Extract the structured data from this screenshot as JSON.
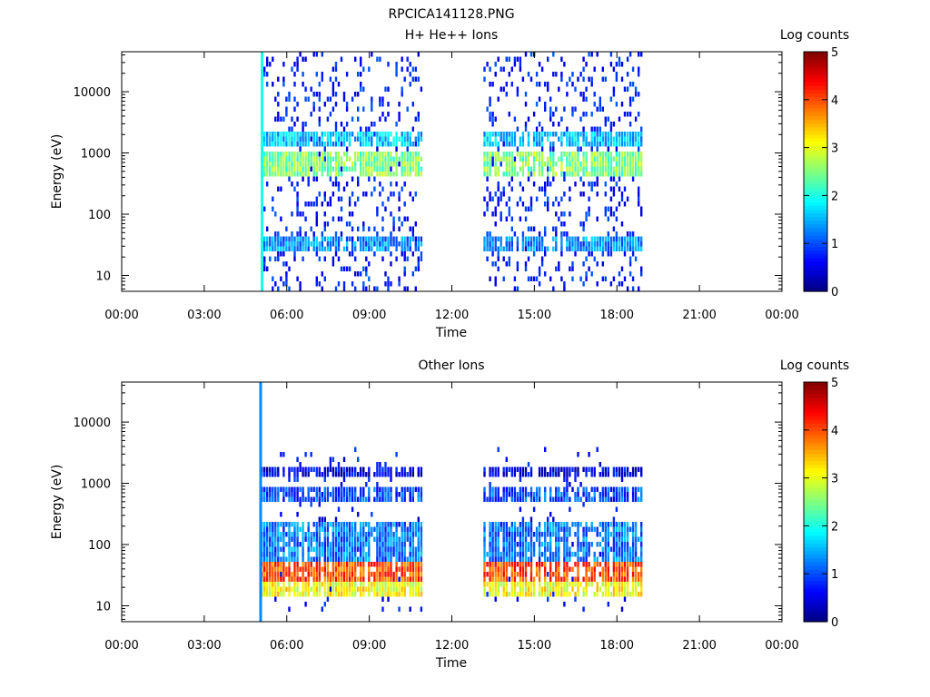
{
  "figure_title": "RPCICA141128.PNG",
  "colors": {
    "colormap": [
      "#00007f",
      "#0000ff",
      "#007fff",
      "#00ffff",
      "#7fff7f",
      "#ffff00",
      "#ff7f00",
      "#ff0000",
      "#7f0000"
    ]
  },
  "chart_data": [
    {
      "type": "heatmap",
      "title": "H+ He++ Ions",
      "xlabel": "Time",
      "ylabel": "Energy (eV)",
      "yscale": "log",
      "ylim": [
        5.5,
        45000
      ],
      "xlim_hours": [
        0,
        24
      ],
      "x_ticks": [
        "00:00",
        "03:00",
        "06:00",
        "09:00",
        "12:00",
        "15:00",
        "18:00",
        "21:00",
        "00:00"
      ],
      "y_ticks": [
        {
          "value": 10,
          "label": "10"
        },
        {
          "value": 100,
          "label": "100"
        },
        {
          "value": 1000,
          "label": "1000"
        },
        {
          "value": 10000,
          "label": "10000"
        }
      ],
      "colorbar": {
        "label": "Log counts",
        "range": [
          0,
          5
        ],
        "ticks": [
          "0",
          "1",
          "2",
          "3",
          "4",
          "5"
        ]
      },
      "data_intervals_hours": [
        [
          5.05,
          10.85
        ],
        [
          13.15,
          18.9
        ]
      ],
      "spike_hour": 5.05,
      "spike_level": 2,
      "bands": [
        {
          "e_lo": 1200,
          "e_hi": 2300,
          "level": 1.6
        },
        {
          "e_lo": 420,
          "e_hi": 1000,
          "level": 2.5
        },
        {
          "e_lo": 24,
          "e_hi": 45,
          "level": 1.3
        }
      ],
      "scatter": [
        {
          "e_lo": 6,
          "e_hi": 42000,
          "level": 0.4,
          "density": 0.18
        }
      ]
    },
    {
      "type": "heatmap",
      "title": "Other Ions",
      "xlabel": "Time",
      "ylabel": "Energy (eV)",
      "yscale": "log",
      "ylim": [
        5.5,
        45000
      ],
      "xlim_hours": [
        0,
        24
      ],
      "x_ticks": [
        "00:00",
        "03:00",
        "06:00",
        "09:00",
        "12:00",
        "15:00",
        "18:00",
        "21:00",
        "00:00"
      ],
      "y_ticks": [
        {
          "value": 10,
          "label": "10"
        },
        {
          "value": 100,
          "label": "100"
        },
        {
          "value": 1000,
          "label": "1000"
        },
        {
          "value": 10000,
          "label": "10000"
        }
      ],
      "colorbar": {
        "label": "Log counts",
        "range": [
          0,
          5
        ],
        "ticks": [
          "0",
          "1",
          "2",
          "3",
          "4",
          "5"
        ]
      },
      "data_intervals_hours": [
        [
          5.05,
          10.85
        ],
        [
          13.15,
          18.9
        ]
      ],
      "spike_hour": 5.0,
      "spike_level": 1.3,
      "bands": [
        {
          "e_lo": 26,
          "e_hi": 50,
          "level": 4.0
        },
        {
          "e_lo": 14,
          "e_hi": 26,
          "level": 3.1
        },
        {
          "e_lo": 50,
          "e_hi": 220,
          "level": 1.2
        },
        {
          "e_lo": 500,
          "e_hi": 900,
          "level": 1.0
        },
        {
          "e_lo": 1300,
          "e_hi": 1700,
          "level": 0.5
        }
      ],
      "scatter": [
        {
          "e_lo": 8,
          "e_hi": 4000,
          "level": 0.3,
          "density": 0.05
        }
      ]
    }
  ]
}
